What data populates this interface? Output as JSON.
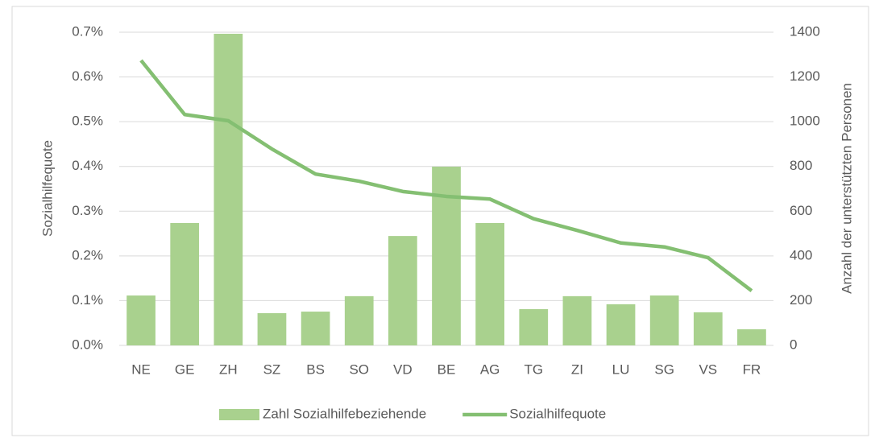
{
  "chart_data": {
    "type": "bar_line",
    "categories": [
      "NE",
      "GE",
      "ZH",
      "SZ",
      "BS",
      "SO",
      "VD",
      "BE",
      "AG",
      "TG",
      "ZI",
      "LU",
      "SG",
      "VS",
      "FR"
    ],
    "series": [
      {
        "name": "Zahl Sozialhilfebeziehende",
        "type": "bar",
        "axis": "y2",
        "color": "#a9d18e",
        "values": [
          223,
          547,
          1393,
          144,
          151,
          220,
          489,
          799,
          547,
          162,
          220,
          184,
          223,
          148,
          72
        ]
      },
      {
        "name": "Sozialhilfequote",
        "type": "line",
        "axis": "y",
        "color": "#84bf72",
        "values": [
          0.637,
          0.516,
          0.502,
          0.439,
          0.383,
          0.367,
          0.344,
          0.333,
          0.327,
          0.283,
          0.257,
          0.229,
          0.22,
          0.196,
          0.122
        ]
      }
    ],
    "ylabel": "Sozialhilfequote",
    "y2label": "Anzahl der unterstützten Personen",
    "ylim": [
      0,
      0.7
    ],
    "yticks": [
      {
        "value": 0,
        "label": "0.0%"
      },
      {
        "value": 0.1,
        "label": "0.1%"
      },
      {
        "value": 0.2,
        "label": "0.2%"
      },
      {
        "value": 0.3,
        "label": "0.3%"
      },
      {
        "value": 0.4,
        "label": "0.4%"
      },
      {
        "value": 0.5,
        "label": "0.5%"
      },
      {
        "value": 0.6,
        "label": "0.6%"
      },
      {
        "value": 0.7,
        "label": "0.7%"
      }
    ],
    "y2lim": [
      0,
      1400
    ],
    "y2ticks": [
      0,
      200,
      400,
      600,
      800,
      1000,
      1200,
      1400
    ],
    "grid": true,
    "legend": "bottom"
  }
}
